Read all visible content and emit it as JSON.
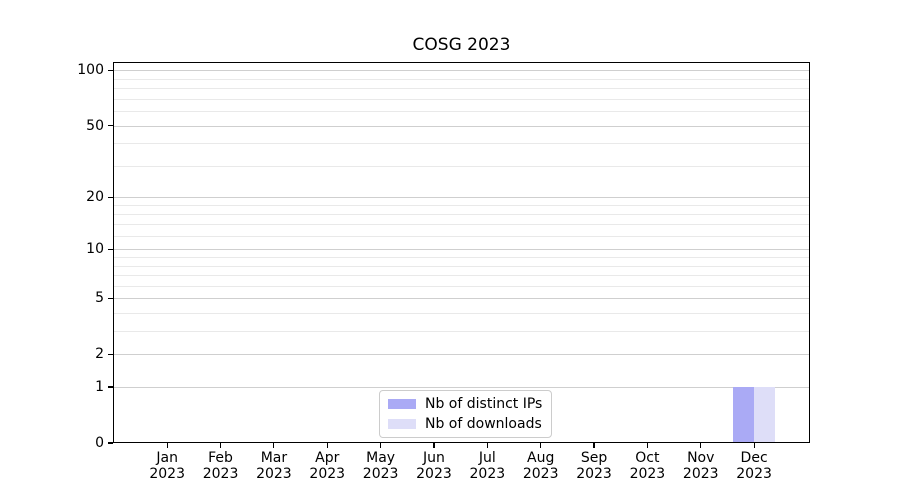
{
  "chart_data": {
    "type": "bar",
    "title": "COSG 2023",
    "categories": [
      "Jan",
      "Feb",
      "Mar",
      "Apr",
      "May",
      "Jun",
      "Jul",
      "Aug",
      "Sep",
      "Oct",
      "Nov",
      "Dec"
    ],
    "category_year": "2023",
    "series": [
      {
        "name": "Nb of distinct IPs",
        "color": "#aaaaf5",
        "values": [
          0,
          0,
          0,
          0,
          0,
          0,
          0,
          0,
          0,
          0,
          0,
          1
        ]
      },
      {
        "name": "Nb of downloads",
        "color": "#dedef8",
        "values": [
          0,
          0,
          0,
          0,
          0,
          0,
          0,
          0,
          0,
          0,
          0,
          1
        ]
      }
    ],
    "xlabel": "",
    "ylabel": "",
    "yscale": "log1p",
    "ylim": [
      0,
      111
    ],
    "yticks": [
      0,
      1,
      2,
      5,
      10,
      20,
      50,
      100
    ],
    "yticks_minor": [
      3,
      4,
      6,
      7,
      8,
      9,
      12,
      14,
      16,
      18,
      30,
      40,
      60,
      70,
      80,
      90
    ],
    "grid": "on",
    "legend_position": "lower center"
  },
  "colors": {
    "grid_major": "#cfcfcf",
    "grid_minor": "#e9e9e9",
    "spine": "#000000",
    "text": "#000000",
    "legend_border": "#cccccc",
    "background": "#ffffff"
  }
}
